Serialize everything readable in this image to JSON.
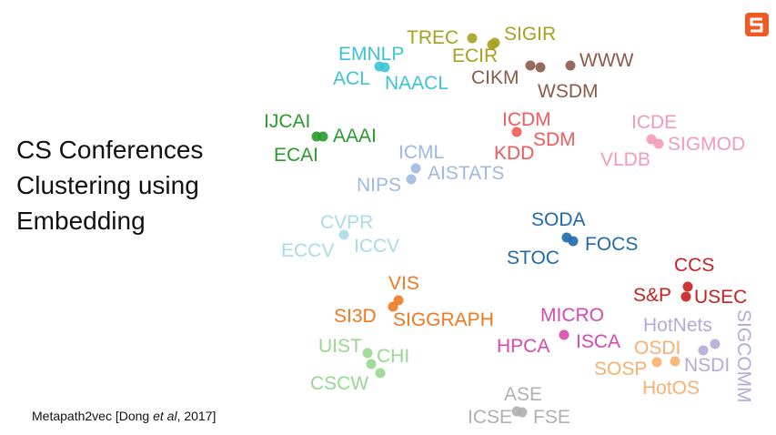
{
  "slide": {
    "title_lines": [
      "CS Conferences",
      "Clustering using",
      "Embedding"
    ],
    "citation": [
      "Metapath2vec [Dong ",
      "et al",
      ", 2017]"
    ],
    "clusters": [
      {
        "color": "#a8a020",
        "labels": [
          "TREC",
          "SIGIR",
          "ECIR"
        ]
      },
      {
        "color": "#8b5a4a",
        "labels": [
          "CIKM",
          "WWW",
          "WSDM"
        ]
      },
      {
        "color": "#3cc4d4",
        "labels": [
          "EMNLP",
          "ACL",
          "NAACL"
        ]
      },
      {
        "color": "#2a9a2a",
        "labels": [
          "IJCAI",
          "AAAI",
          "ECAI"
        ]
      },
      {
        "color": "#f05a5a",
        "labels": [
          "ICDM",
          "SDM",
          "KDD"
        ]
      },
      {
        "color": "#f49ab8",
        "labels": [
          "ICDE",
          "SIGMOD",
          "VLDB"
        ]
      },
      {
        "color": "#a0b8e0",
        "labels": [
          "ICML",
          "AISTATS",
          "NIPS"
        ]
      },
      {
        "color": "#a8dce8",
        "labels": [
          "CVPR",
          "ECCV",
          "ICCV"
        ]
      },
      {
        "color": "#1f6aaa",
        "labels": [
          "SODA",
          "FOCS",
          "STOC"
        ]
      },
      {
        "color": "#c82020",
        "labels": [
          "CCS",
          "S&P",
          "USEC"
        ]
      },
      {
        "color": "#f07820",
        "labels": [
          "VIS",
          "SI3D",
          "SIGGRAPH"
        ]
      },
      {
        "color": "#d848b0",
        "labels": [
          "MICRO",
          "HPCA",
          "ISCA"
        ]
      },
      {
        "color": "#b8a8d8",
        "labels": [
          "HotNets",
          "SIGCOMM",
          "NSDI"
        ]
      },
      {
        "color": "#f8b070",
        "labels": [
          "OSDI",
          "SOSP",
          "HotOS"
        ]
      },
      {
        "color": "#98d890",
        "labels": [
          "UIST",
          "CHI",
          "CSCW"
        ]
      },
      {
        "color": "#b0b0b0",
        "labels": [
          "ASE",
          "ICSE",
          "FSE"
        ]
      }
    ]
  }
}
